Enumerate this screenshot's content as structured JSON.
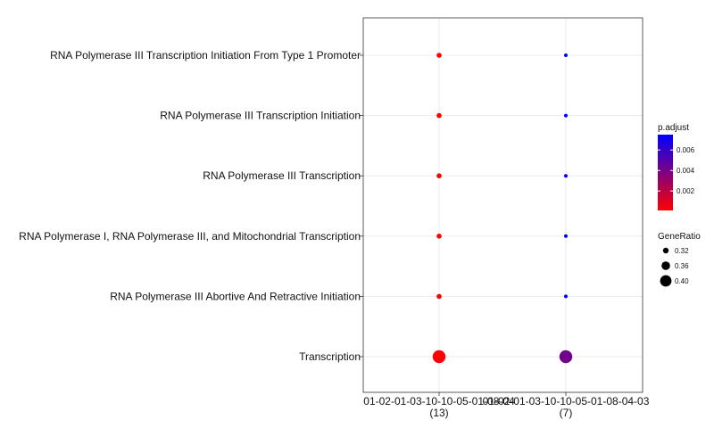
{
  "chart_data": {
    "type": "scatter",
    "title": "",
    "xlabel": "",
    "ylabel": "",
    "x_categories": [
      {
        "label": "01-02-01-03-10-10-05-01-08-04",
        "count": "(13)"
      },
      {
        "label": "01-02-01-03-10-10-05-01-08-04-03",
        "count": "(7)"
      }
    ],
    "y_categories": [
      "Transcription",
      "RNA Polymerase III Abortive And Retractive Initiation",
      "RNA Polymerase I, RNA Polymerase III, and Mitochondrial Transcription",
      "RNA Polymerase III Transcription",
      "RNA Polymerase III Transcription Initiation",
      "RNA Polymerase III Transcription Initiation From Type 1 Promoter"
    ],
    "points": [
      {
        "x": 0,
        "y": "RNA Polymerase III Transcription Initiation From Type 1 Promoter",
        "gene_ratio": 0.31,
        "p_adjust": 0.0001
      },
      {
        "x": 0,
        "y": "RNA Polymerase III Transcription Initiation",
        "gene_ratio": 0.31,
        "p_adjust": 0.0001
      },
      {
        "x": 0,
        "y": "RNA Polymerase III Transcription",
        "gene_ratio": 0.31,
        "p_adjust": 0.0001
      },
      {
        "x": 0,
        "y": "RNA Polymerase I, RNA Polymerase III, and Mitochondrial Transcription",
        "gene_ratio": 0.31,
        "p_adjust": 0.0001
      },
      {
        "x": 0,
        "y": "RNA Polymerase III Abortive And Retractive Initiation",
        "gene_ratio": 0.31,
        "p_adjust": 0.0001
      },
      {
        "x": 0,
        "y": "Transcription",
        "gene_ratio": 0.42,
        "p_adjust": 0.0001
      },
      {
        "x": 1,
        "y": "RNA Polymerase III Transcription Initiation From Type 1 Promoter",
        "gene_ratio": 0.29,
        "p_adjust": 0.0075
      },
      {
        "x": 1,
        "y": "RNA Polymerase III Transcription Initiation",
        "gene_ratio": 0.29,
        "p_adjust": 0.0075
      },
      {
        "x": 1,
        "y": "RNA Polymerase III Transcription",
        "gene_ratio": 0.29,
        "p_adjust": 0.0075
      },
      {
        "x": 1,
        "y": "RNA Polymerase I, RNA Polymerase III, and Mitochondrial Transcription",
        "gene_ratio": 0.29,
        "p_adjust": 0.0075
      },
      {
        "x": 1,
        "y": "RNA Polymerase III Abortive And Retractive Initiation",
        "gene_ratio": 0.29,
        "p_adjust": 0.0075
      },
      {
        "x": 1,
        "y": "Transcription",
        "gene_ratio": 0.42,
        "p_adjust": 0.0042
      }
    ],
    "color_legend": {
      "title": "p.adjust",
      "ticks": [
        0.002,
        0.004,
        0.006
      ],
      "tick_labels": [
        "0.002",
        "0.004",
        "0.006"
      ],
      "range": [
        0.0001,
        0.0075
      ],
      "low_color": "#ff0000",
      "high_color": "#0000ff"
    },
    "size_legend": {
      "title": "GeneRatio",
      "values": [
        0.32,
        0.36,
        0.4
      ],
      "labels": [
        "0.32",
        "0.36",
        "0.40"
      ]
    },
    "grid": true,
    "legend_position": "right"
  }
}
